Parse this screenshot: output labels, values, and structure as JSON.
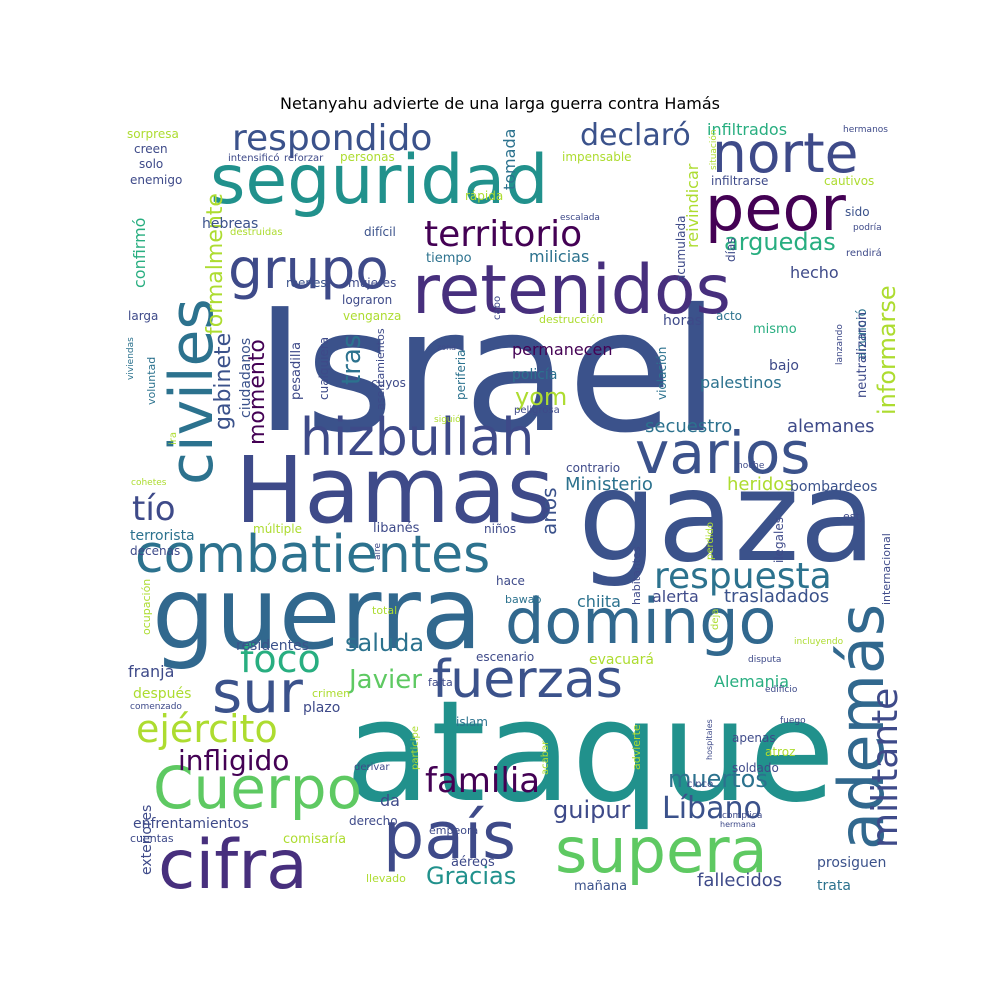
{
  "title": "Netanyahu advierte de una larga guerra contra Hamás",
  "palette": [
    "#440154",
    "#472f7d",
    "#3b528b",
    "#2c728e",
    "#21918c",
    "#28ae80",
    "#5ec962",
    "#addc30",
    "#fde725"
  ],
  "words": [
    {
      "text": "Israel",
      "size": 170,
      "rotate": false,
      "color": "#3b528b"
    },
    {
      "text": "ataque",
      "size": 140,
      "rotate": false,
      "color": "#21918c"
    },
    {
      "text": "gaza",
      "size": 125,
      "rotate": false,
      "color": "#3b528b"
    },
    {
      "text": "guerra",
      "size": 100,
      "rotate": false,
      "color": "#31688e"
    },
    {
      "text": "Hamas",
      "size": 92,
      "rotate": false,
      "color": "#3e4a89"
    },
    {
      "text": "seguridad",
      "size": 68,
      "rotate": false,
      "color": "#21918c"
    },
    {
      "text": "retenidos",
      "size": 68,
      "rotate": false,
      "color": "#472f7d"
    },
    {
      "text": "combatientes",
      "size": 52,
      "rotate": false,
      "color": "#2c728e"
    },
    {
      "text": "domingo",
      "size": 62,
      "rotate": false,
      "color": "#31688e"
    },
    {
      "text": "varios",
      "size": 58,
      "rotate": false,
      "color": "#3b528b"
    },
    {
      "text": "hizbullah",
      "size": 52,
      "rotate": false,
      "color": "#3e4a89"
    },
    {
      "text": "peor",
      "size": 62,
      "rotate": false,
      "color": "#440154"
    },
    {
      "text": "norte",
      "size": 55,
      "rotate": false,
      "color": "#3e4a89"
    },
    {
      "text": "civiles",
      "size": 60,
      "rotate": true,
      "color": "#2c728e"
    },
    {
      "text": "grupo",
      "size": 55,
      "rotate": false,
      "color": "#3e4a89"
    },
    {
      "text": "cifra",
      "size": 68,
      "rotate": false,
      "color": "#472f7d"
    },
    {
      "text": "Cuerpo",
      "size": 58,
      "rotate": false,
      "color": "#5ec962"
    },
    {
      "text": "país",
      "size": 65,
      "rotate": false,
      "color": "#3e4a89"
    },
    {
      "text": "supera",
      "size": 62,
      "rotate": false,
      "color": "#5ec962"
    },
    {
      "text": "además",
      "size": 62,
      "rotate": true,
      "color": "#31688e"
    },
    {
      "text": "fuerzas",
      "size": 52,
      "rotate": false,
      "color": "#3b528b"
    },
    {
      "text": "sur",
      "size": 58,
      "rotate": false,
      "color": "#3b528b"
    },
    {
      "text": "respuesta",
      "size": 36,
      "rotate": false,
      "color": "#2c728e"
    },
    {
      "text": "militante",
      "size": 36,
      "rotate": true,
      "color": "#3e4a89"
    },
    {
      "text": "territorio",
      "size": 36,
      "rotate": false,
      "color": "#440154"
    },
    {
      "text": "respondido",
      "size": 36,
      "rotate": false,
      "color": "#3b528b"
    },
    {
      "text": "declaró",
      "size": 30,
      "rotate": false,
      "color": "#3b528b"
    },
    {
      "text": "familia",
      "size": 34,
      "rotate": false,
      "color": "#440154"
    },
    {
      "text": "foco",
      "size": 38,
      "rotate": false,
      "color": "#28ae80"
    },
    {
      "text": "ejército",
      "size": 38,
      "rotate": false,
      "color": "#addc30"
    },
    {
      "text": "Líbano",
      "size": 30,
      "rotate": false,
      "color": "#3b528b"
    },
    {
      "text": "infligido",
      "size": 28,
      "rotate": false,
      "color": "#440154"
    },
    {
      "text": "tío",
      "size": 34,
      "rotate": false,
      "color": "#3e4a89"
    },
    {
      "text": "Javier",
      "size": 26,
      "rotate": false,
      "color": "#5ec962"
    },
    {
      "text": "muertos",
      "size": 24,
      "rotate": false,
      "color": "#2c728e"
    },
    {
      "text": "guipur",
      "size": 24,
      "rotate": false,
      "color": "#3e4a89"
    },
    {
      "text": "Gracias",
      "size": 24,
      "rotate": false,
      "color": "#21918c"
    },
    {
      "text": "saluda",
      "size": 24,
      "rotate": false,
      "color": "#2c728e"
    },
    {
      "text": "arguedas",
      "size": 24,
      "rotate": false,
      "color": "#28ae80"
    },
    {
      "text": "informarse",
      "size": 24,
      "rotate": true,
      "color": "#addc30"
    },
    {
      "text": "formalmente",
      "size": 22,
      "rotate": true,
      "color": "#addc30"
    },
    {
      "text": "gabinete",
      "size": 22,
      "rotate": true,
      "color": "#3b528b"
    },
    {
      "text": "tras",
      "size": 26,
      "rotate": true,
      "color": "#2c728e"
    },
    {
      "text": "yom",
      "size": 24,
      "rotate": false,
      "color": "#addc30"
    },
    {
      "text": "momento",
      "size": 22,
      "rotate": true,
      "color": "#440154"
    },
    {
      "text": "secuestro",
      "size": 18,
      "rotate": false,
      "color": "#2c728e"
    },
    {
      "text": "alemanes",
      "size": 18,
      "rotate": false,
      "color": "#3e4a89"
    },
    {
      "text": "Ministerio",
      "size": 18,
      "rotate": false,
      "color": "#2c728e"
    },
    {
      "text": "heridos",
      "size": 18,
      "rotate": false,
      "color": "#addc30"
    },
    {
      "text": "trasladados",
      "size": 18,
      "rotate": false,
      "color": "#3b528b"
    },
    {
      "text": "alerta",
      "size": 16,
      "rotate": false,
      "color": "#3e4a89"
    },
    {
      "text": "chiita",
      "size": 16,
      "rotate": false,
      "color": "#2c728e"
    },
    {
      "text": "Alemania",
      "size": 16,
      "rotate": false,
      "color": "#28ae80"
    },
    {
      "text": "fallecidos",
      "size": 18,
      "rotate": false,
      "color": "#3e4a89"
    },
    {
      "text": "años",
      "size": 20,
      "rotate": true,
      "color": "#3b528b"
    },
    {
      "text": "hecho",
      "size": 16,
      "rotate": false,
      "color": "#3e4a89"
    },
    {
      "text": "milicias",
      "size": 16,
      "rotate": false,
      "color": "#2c728e"
    },
    {
      "text": "infiltrados",
      "size": 16,
      "rotate": false,
      "color": "#28ae80"
    },
    {
      "text": "tomada",
      "size": 16,
      "rotate": true,
      "color": "#2c728e"
    },
    {
      "text": "reivindicar",
      "size": 16,
      "rotate": true,
      "color": "#addc30"
    },
    {
      "text": "permanecen",
      "size": 16,
      "rotate": false,
      "color": "#440154"
    },
    {
      "text": "palestinos",
      "size": 16,
      "rotate": false,
      "color": "#2c728e"
    },
    {
      "text": "bombardeos",
      "size": 14,
      "rotate": false,
      "color": "#3b528b"
    },
    {
      "text": "confirmó",
      "size": 16,
      "rotate": true,
      "color": "#28ae80"
    },
    {
      "text": "ciudadanos",
      "size": 14,
      "rotate": true,
      "color": "#3b528b"
    },
    {
      "text": "hebreas",
      "size": 14,
      "rotate": false,
      "color": "#3b528b"
    },
    {
      "text": "terrorista",
      "size": 14,
      "rotate": false,
      "color": "#2c728e"
    },
    {
      "text": "franja",
      "size": 16,
      "rotate": false,
      "color": "#3e4a89"
    },
    {
      "text": "residentes",
      "size": 14,
      "rotate": false,
      "color": "#3b528b"
    },
    {
      "text": "después",
      "size": 14,
      "rotate": false,
      "color": "#addc30"
    },
    {
      "text": "evacuará",
      "size": 14,
      "rotate": false,
      "color": "#addc30"
    },
    {
      "text": "exteriores",
      "size": 14,
      "rotate": true,
      "color": "#3e4a89"
    },
    {
      "text": "enfrentamientos",
      "size": 14,
      "rotate": false,
      "color": "#3e4a89"
    },
    {
      "text": "comisaría",
      "size": 13,
      "rotate": false,
      "color": "#addc30"
    },
    {
      "text": "mañana",
      "size": 13,
      "rotate": false,
      "color": "#3b528b"
    },
    {
      "text": "prosiguen",
      "size": 14,
      "rotate": false,
      "color": "#3b528b"
    },
    {
      "text": "trata",
      "size": 14,
      "rotate": false,
      "color": "#2c728e"
    },
    {
      "text": "aéreos",
      "size": 13,
      "rotate": false,
      "color": "#3e4a89"
    },
    {
      "text": "da",
      "size": 16,
      "rotate": false,
      "color": "#3e4a89"
    },
    {
      "text": "plazo",
      "size": 14,
      "rotate": false,
      "color": "#3e4a89"
    },
    {
      "text": "horas",
      "size": 14,
      "rotate": false,
      "color": "#3e4a89"
    },
    {
      "text": "policía",
      "size": 14,
      "rotate": false,
      "color": "#2c728e"
    },
    {
      "text": "bajo",
      "size": 14,
      "rotate": false,
      "color": "#3e4a89"
    },
    {
      "text": "mismo",
      "size": 13,
      "rotate": false,
      "color": "#28ae80"
    },
    {
      "text": "acto",
      "size": 12,
      "rotate": false,
      "color": "#2c728e"
    },
    {
      "text": "anunció",
      "size": 13,
      "rotate": true,
      "color": "#2c728e"
    },
    {
      "text": "neutralizaron",
      "size": 13,
      "rotate": true,
      "color": "#3e4a89"
    },
    {
      "text": "sido",
      "size": 12,
      "rotate": false,
      "color": "#3b528b"
    },
    {
      "text": "cautivos",
      "size": 12,
      "rotate": false,
      "color": "#addc30"
    },
    {
      "text": "infiltrarse",
      "size": 12,
      "rotate": false,
      "color": "#3e4a89"
    },
    {
      "text": "impensable",
      "size": 12,
      "rotate": false,
      "color": "#addc30"
    },
    {
      "text": "tiempo",
      "size": 13,
      "rotate": false,
      "color": "#2c728e"
    },
    {
      "text": "difícil",
      "size": 12,
      "rotate": false,
      "color": "#3b528b"
    },
    {
      "text": "mujeres",
      "size": 12,
      "rotate": false,
      "color": "#3e4a89"
    },
    {
      "text": "reenes",
      "size": 12,
      "rotate": false,
      "color": "#3b528b"
    },
    {
      "text": "lograron",
      "size": 12,
      "rotate": false,
      "color": "#3e4a89"
    },
    {
      "text": "venganza",
      "size": 12,
      "rotate": false,
      "color": "#addc30"
    },
    {
      "text": "destrucción",
      "size": 11,
      "rotate": false,
      "color": "#addc30"
    },
    {
      "text": "pesadilla",
      "size": 13,
      "rotate": true,
      "color": "#3e4a89"
    },
    {
      "text": "cualquiera",
      "size": 12,
      "rotate": true,
      "color": "#3e4a89"
    },
    {
      "text": "cuyos",
      "size": 12,
      "rotate": false,
      "color": "#3e4a89"
    },
    {
      "text": "periferia",
      "size": 12,
      "rotate": true,
      "color": "#2c728e"
    },
    {
      "text": "violación",
      "size": 12,
      "rotate": true,
      "color": "#2c728e"
    },
    {
      "text": "peligrosa",
      "size": 10,
      "rotate": false,
      "color": "#3e4a89"
    },
    {
      "text": "asentamientos",
      "size": 11,
      "rotate": true,
      "color": "#3e4a89"
    },
    {
      "text": "contrario",
      "size": 12,
      "rotate": false,
      "color": "#3e4a89"
    },
    {
      "text": "libanés",
      "size": 13,
      "rotate": false,
      "color": "#3e4a89"
    },
    {
      "text": "niños",
      "size": 12,
      "rotate": false,
      "color": "#3e4a89"
    },
    {
      "text": "múltiple",
      "size": 12,
      "rotate": false,
      "color": "#addc30"
    },
    {
      "text": "decenas",
      "size": 12,
      "rotate": false,
      "color": "#3e4a89"
    },
    {
      "text": "hace",
      "size": 12,
      "rotate": false,
      "color": "#3e4a89"
    },
    {
      "text": "bawab",
      "size": 11,
      "rotate": false,
      "color": "#2c728e"
    },
    {
      "text": "total",
      "size": 11,
      "rotate": false,
      "color": "#addc30"
    },
    {
      "text": "escenario",
      "size": 12,
      "rotate": false,
      "color": "#3e4a89"
    },
    {
      "text": "falta",
      "size": 11,
      "rotate": false,
      "color": "#3e4a89"
    },
    {
      "text": "crimen",
      "size": 11,
      "rotate": false,
      "color": "#addc30"
    },
    {
      "text": "islam",
      "size": 12,
      "rotate": false,
      "color": "#2c728e"
    },
    {
      "text": "apenas",
      "size": 12,
      "rotate": false,
      "color": "#3e4a89"
    },
    {
      "text": "atroz",
      "size": 12,
      "rotate": false,
      "color": "#addc30"
    },
    {
      "text": "soldado",
      "size": 12,
      "rotate": false,
      "color": "#3e4a89"
    },
    {
      "text": "derivar",
      "size": 10,
      "rotate": false,
      "color": "#3e4a89"
    },
    {
      "text": "derecho",
      "size": 12,
      "rotate": false,
      "color": "#3e4a89"
    },
    {
      "text": "empeora",
      "size": 11,
      "rotate": false,
      "color": "#3e4a89"
    },
    {
      "text": "cuentas",
      "size": 11,
      "rotate": false,
      "color": "#3e4a89"
    },
    {
      "text": "llevado",
      "size": 11,
      "rotate": false,
      "color": "#addc30"
    },
    {
      "text": "cinco",
      "size": 10,
      "rotate": false,
      "color": "#3e4a89"
    },
    {
      "text": "complica",
      "size": 9,
      "rotate": false,
      "color": "#3e4a89"
    },
    {
      "text": "hermana",
      "size": 8,
      "rotate": false,
      "color": "#3e4a89"
    },
    {
      "text": "sorpresa",
      "size": 12,
      "rotate": false,
      "color": "#addc30"
    },
    {
      "text": "creen",
      "size": 12,
      "rotate": false,
      "color": "#3e4a89"
    },
    {
      "text": "solo",
      "size": 12,
      "rotate": false,
      "color": "#3e4a89"
    },
    {
      "text": "enemigo",
      "size": 12,
      "rotate": false,
      "color": "#3e4a89"
    },
    {
      "text": "larga",
      "size": 12,
      "rotate": false,
      "color": "#3e4a89"
    },
    {
      "text": "viviendas",
      "size": 9,
      "rotate": true,
      "color": "#2c728e"
    },
    {
      "text": "voluntad",
      "size": 11,
      "rotate": true,
      "color": "#2c728e"
    },
    {
      "text": "ira",
      "size": 10,
      "rotate": true,
      "color": "#addc30"
    },
    {
      "text": "cohetes",
      "size": 9,
      "rotate": false,
      "color": "#addc30"
    },
    {
      "text": "ocupación",
      "size": 11,
      "rotate": true,
      "color": "#addc30"
    },
    {
      "text": "comenzado",
      "size": 9,
      "rotate": false,
      "color": "#3e4a89"
    },
    {
      "text": "intensificó",
      "size": 10,
      "rotate": false,
      "color": "#3e4a89"
    },
    {
      "text": "reforzar",
      "size": 10,
      "rotate": false,
      "color": "#3e4a89"
    },
    {
      "text": "personas",
      "size": 12,
      "rotate": false,
      "color": "#addc30"
    },
    {
      "text": "rápida",
      "size": 12,
      "rotate": false,
      "color": "#addc30"
    },
    {
      "text": "destruidas",
      "size": 10,
      "rotate": false,
      "color": "#addc30"
    },
    {
      "text": "escalada",
      "size": 9,
      "rotate": false,
      "color": "#3e4a89"
    },
    {
      "text": "hermanos",
      "size": 9,
      "rotate": false,
      "color": "#3e4a89"
    },
    {
      "text": "situación",
      "size": 9,
      "rotate": true,
      "color": "#addc30"
    },
    {
      "text": "acumulada",
      "size": 12,
      "rotate": true,
      "color": "#3e4a89"
    },
    {
      "text": "días",
      "size": 12,
      "rotate": true,
      "color": "#3e4a89"
    },
    {
      "text": "cabo",
      "size": 10,
      "rotate": true,
      "color": "#3e4a89"
    },
    {
      "text": "podría",
      "size": 9,
      "rotate": false,
      "color": "#3e4a89"
    },
    {
      "text": "rendirá",
      "size": 10,
      "rotate": false,
      "color": "#3e4a89"
    },
    {
      "text": "lanzando",
      "size": 9,
      "rotate": true,
      "color": "#3e4a89"
    },
    {
      "text": "zona",
      "size": 8,
      "rotate": false,
      "color": "#3e4a89"
    },
    {
      "text": "siguió",
      "size": 9,
      "rotate": false,
      "color": "#addc30"
    },
    {
      "text": "noche",
      "size": 9,
      "rotate": false,
      "color": "#3e4a89"
    },
    {
      "text": "estj",
      "size": 11,
      "rotate": false,
      "color": "#3e4a89"
    },
    {
      "text": "internacional",
      "size": 11,
      "rotate": true,
      "color": "#3e4a89"
    },
    {
      "text": "ilegales",
      "size": 12,
      "rotate": true,
      "color": "#3e4a89"
    },
    {
      "text": "perdido",
      "size": 10,
      "rotate": true,
      "color": "#addc30"
    },
    {
      "text": "habitantes",
      "size": 11,
      "rotate": true,
      "color": "#3e4a89"
    },
    {
      "text": "aire",
      "size": 9,
      "rotate": true,
      "color": "#3e4a89"
    },
    {
      "text": "deja",
      "size": 10,
      "rotate": true,
      "color": "#addc30"
    },
    {
      "text": "incluyendo",
      "size": 9,
      "rotate": false,
      "color": "#addc30"
    },
    {
      "text": "disputa",
      "size": 9,
      "rotate": false,
      "color": "#3e4a89"
    },
    {
      "text": "edificio",
      "size": 9,
      "rotate": false,
      "color": "#3e4a89"
    },
    {
      "text": "fuego",
      "size": 9,
      "rotate": false,
      "color": "#3e4a89"
    },
    {
      "text": "hospitales",
      "size": 8,
      "rotate": true,
      "color": "#3e4a89"
    },
    {
      "text": "advierte",
      "size": 11,
      "rotate": true,
      "color": "#addc30"
    },
    {
      "text": "acabar",
      "size": 10,
      "rotate": true,
      "color": "#addc30"
    },
    {
      "text": "participe",
      "size": 10,
      "rotate": true,
      "color": "#addc30"
    }
  ]
}
